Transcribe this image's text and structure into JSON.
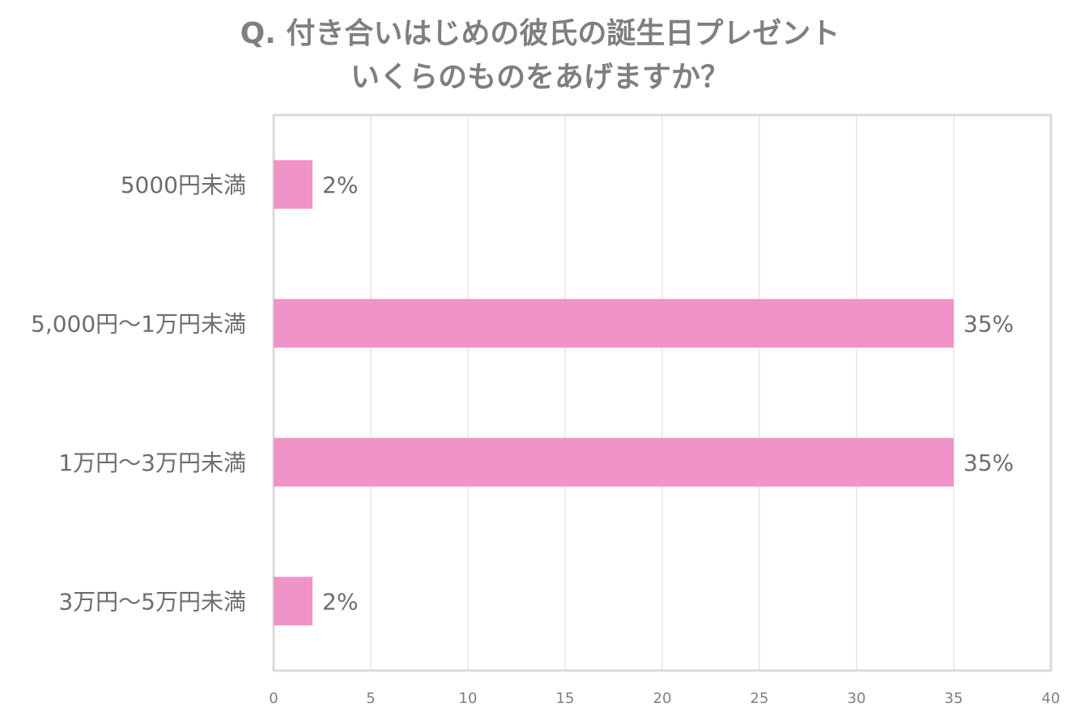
{
  "chart_data": {
    "type": "bar",
    "orientation": "horizontal",
    "title": [
      "Q. 付き合いはじめの彼氏の誕生日プレゼント",
      "いくらのものをあげますか？"
    ],
    "categories": [
      "5000円未満",
      "5,000円～1万円未満",
      "1万円～3万円未満",
      "3万円～5万円未満"
    ],
    "values": [
      2,
      35,
      35,
      2
    ],
    "data_labels": [
      "2%",
      "35%",
      "35%",
      "2%"
    ],
    "xlim": [
      0,
      40
    ],
    "x_ticks": [
      "0",
      "5",
      "10",
      "15",
      "20",
      "25",
      "30",
      "35",
      "40"
    ],
    "grid": true,
    "bar_color": "#f093c6",
    "grid_color": "#d9d9d9",
    "border_color": "#d9d9d9",
    "title_color": "#7f7f7f",
    "label_color": "#6d6d6d"
  }
}
